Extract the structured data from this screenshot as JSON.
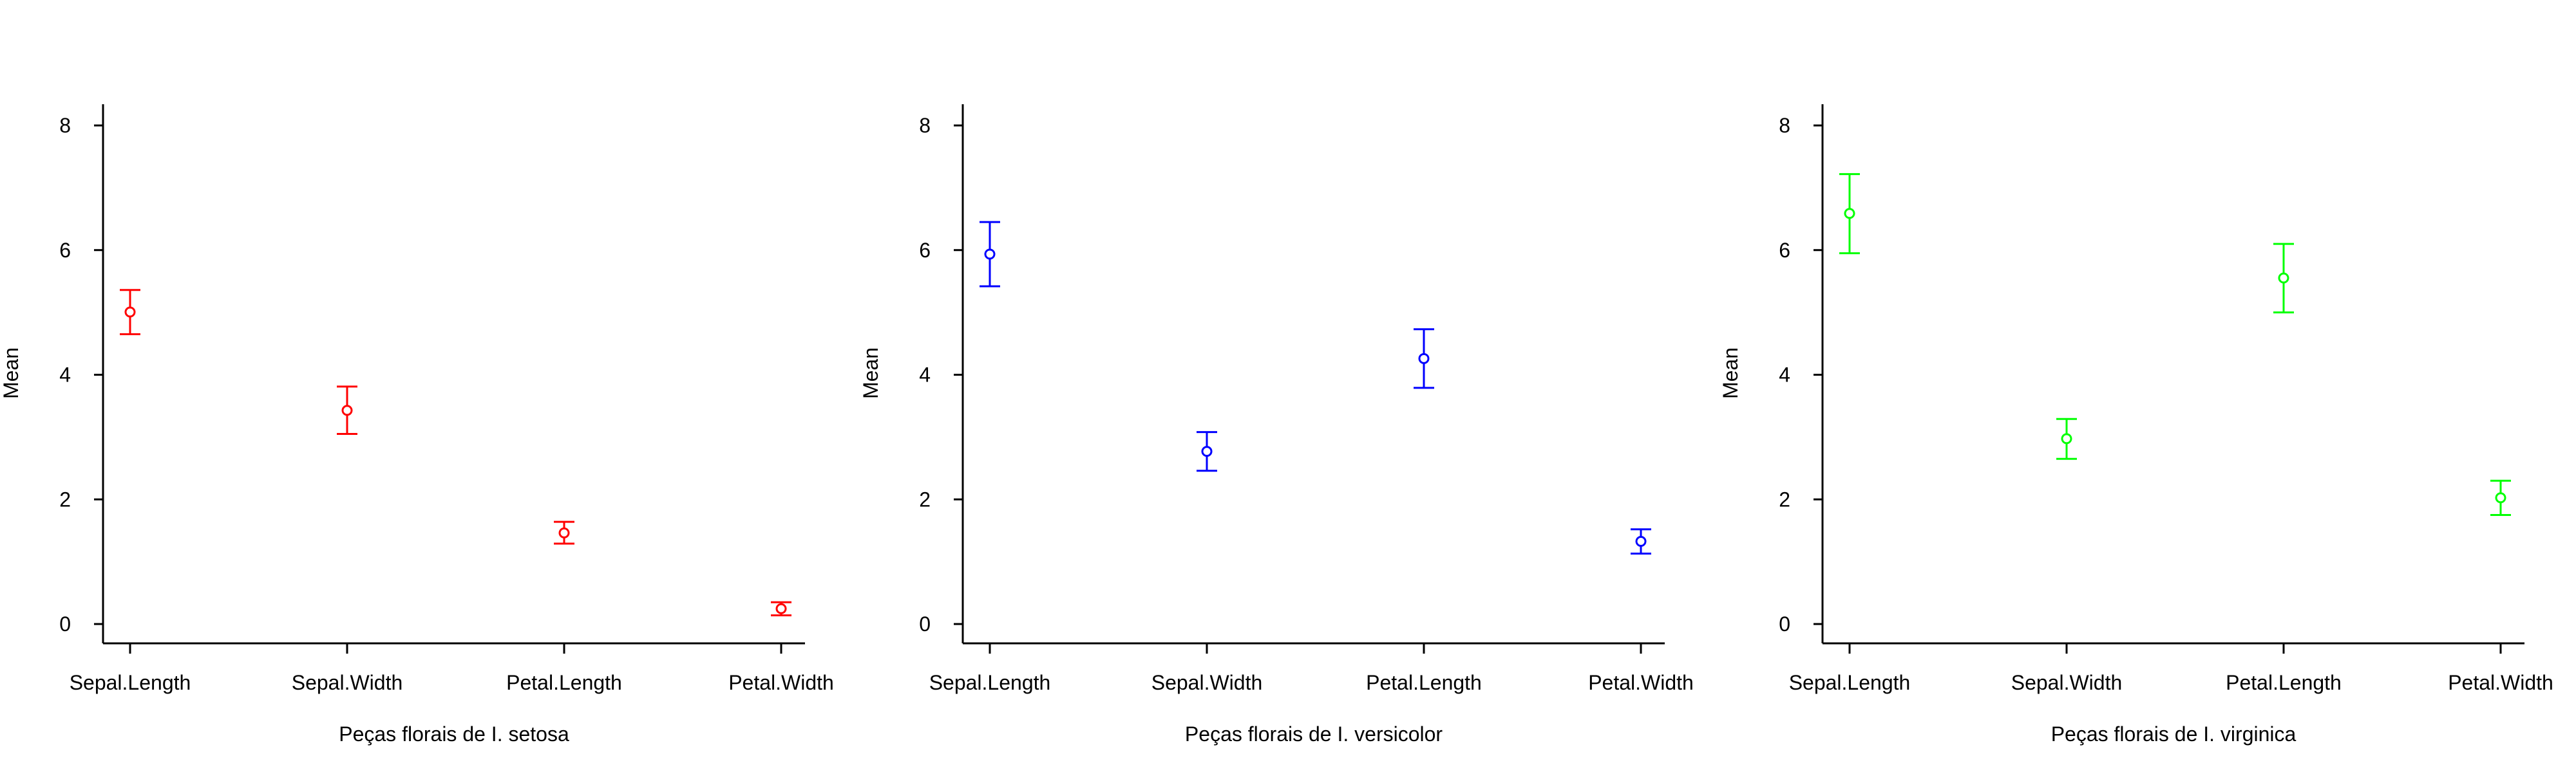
{
  "chart_data": [
    {
      "type": "scatter",
      "style": "mean with error bars",
      "categories": [
        "Sepal.Length",
        "Sepal.Width",
        "Petal.Length",
        "Petal.Width"
      ],
      "series": [
        {
          "color": "#ff0000",
          "mean": [
            5.006,
            3.428,
            1.462,
            0.246
          ],
          "lower": [
            4.65,
            3.05,
            1.29,
            0.14
          ],
          "upper": [
            5.36,
            3.81,
            1.64,
            0.35
          ]
        }
      ],
      "xlabel": "Peças florais de I. setosa",
      "ylabel": "Mean",
      "ylim": [
        0,
        8
      ],
      "yticks": [
        0,
        2,
        4,
        6,
        8
      ],
      "grid": false
    },
    {
      "type": "scatter",
      "style": "mean with error bars",
      "categories": [
        "Sepal.Length",
        "Sepal.Width",
        "Petal.Length",
        "Petal.Width"
      ],
      "series": [
        {
          "color": "#0000ff",
          "mean": [
            5.936,
            2.77,
            4.26,
            1.326
          ],
          "lower": [
            5.42,
            2.46,
            3.79,
            1.13
          ],
          "upper": [
            6.45,
            3.08,
            4.73,
            1.52
          ]
        }
      ],
      "xlabel": "Peças florais de I. versicolor",
      "ylabel": "Mean",
      "ylim": [
        0,
        8
      ],
      "yticks": [
        0,
        2,
        4,
        6,
        8
      ],
      "grid": false
    },
    {
      "type": "scatter",
      "style": "mean with error bars",
      "categories": [
        "Sepal.Length",
        "Sepal.Width",
        "Petal.Length",
        "Petal.Width"
      ],
      "series": [
        {
          "color": "#00ff00",
          "mean": [
            6.588,
            2.974,
            5.552,
            2.026
          ],
          "lower": [
            5.95,
            2.65,
            5.0,
            1.75
          ],
          "upper": [
            7.22,
            3.29,
            6.1,
            2.3
          ]
        }
      ],
      "xlabel": "Peças florais de I. virginica",
      "ylabel": "Mean",
      "ylim": [
        0,
        8
      ],
      "yticks": [
        0,
        2,
        4,
        6,
        8
      ],
      "grid": false
    }
  ]
}
